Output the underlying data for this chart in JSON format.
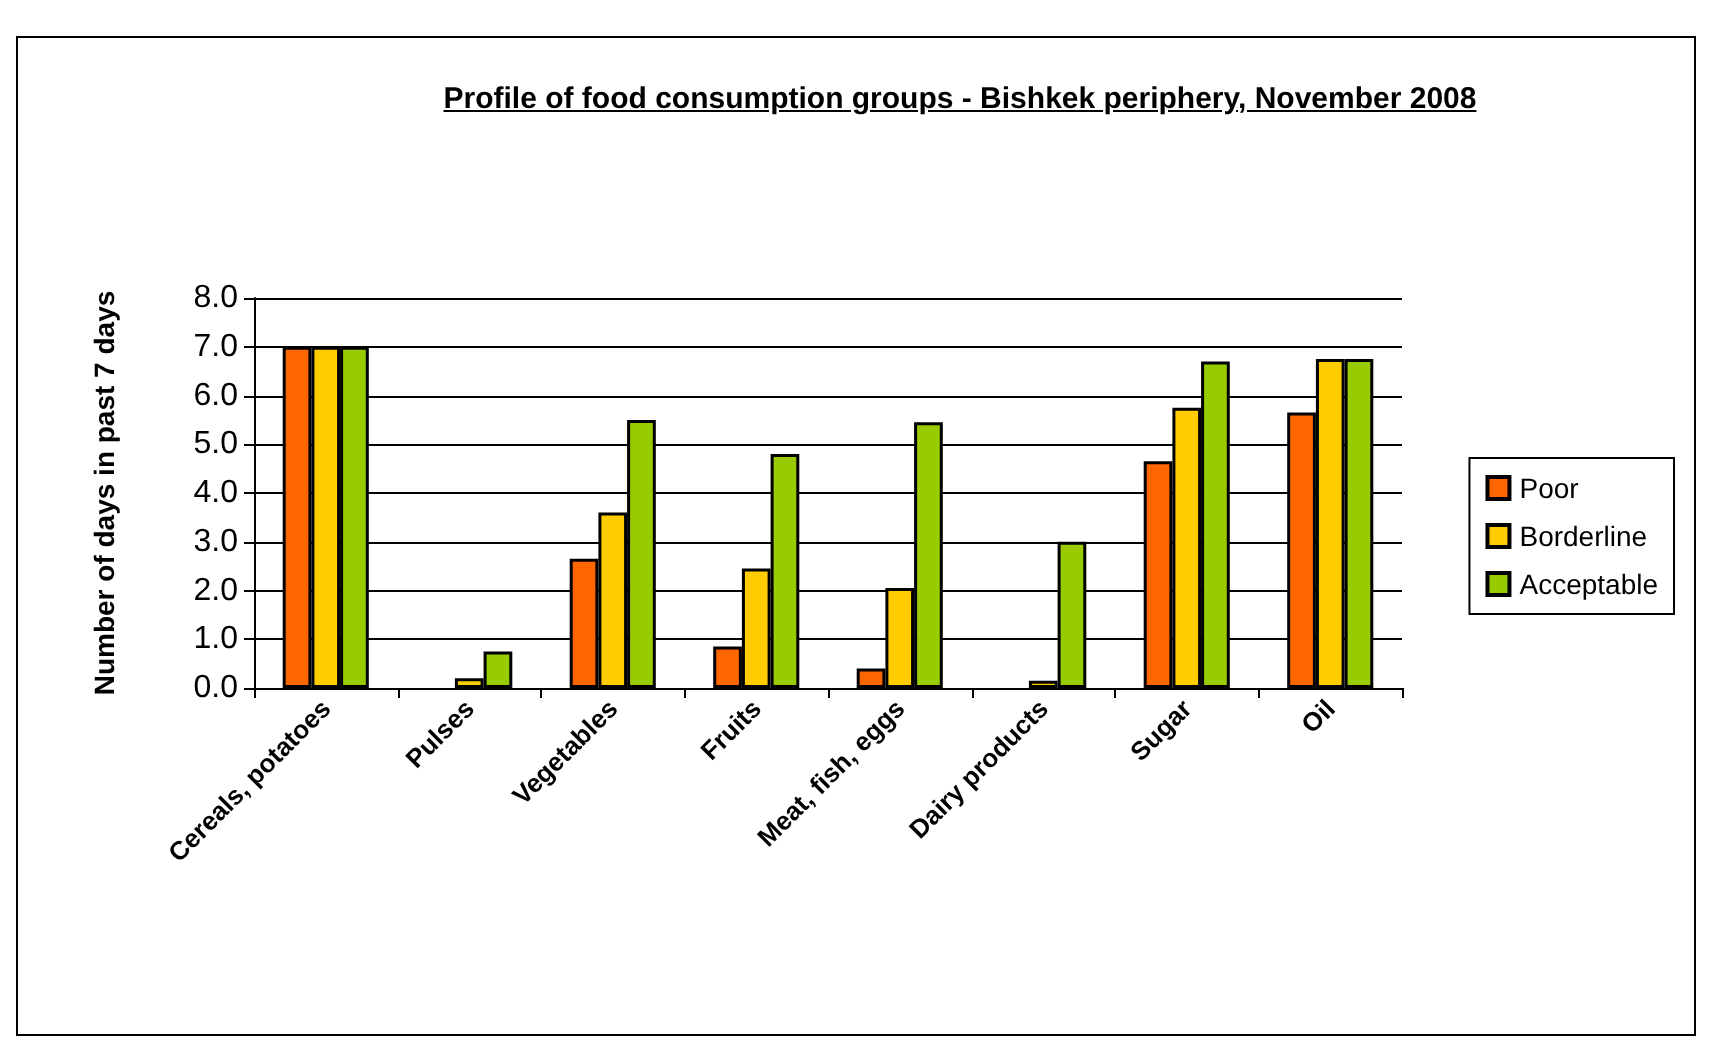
{
  "chart_data": {
    "type": "bar",
    "title": "Profile of food consumption groups - Bishkek periphery, November 2008",
    "ylabel": "Number of days in past 7 days",
    "categories": [
      "Cereals, potatoes",
      "Pulses",
      "Vegetables",
      "Fruits",
      "Meat, fish, eggs",
      "Dairy products",
      "Sugar",
      "Oil"
    ],
    "series": [
      {
        "name": "Poor",
        "color": "#ff6600",
        "values": [
          7.0,
          0,
          2.65,
          0.85,
          0.4,
          0,
          4.65,
          5.65
        ]
      },
      {
        "name": "Borderline",
        "color": "#ffcc00",
        "values": [
          7.0,
          0.2,
          3.6,
          2.45,
          2.05,
          0.15,
          5.75,
          6.75
        ]
      },
      {
        "name": "Acceptable",
        "color": "#99cc00",
        "values": [
          7.0,
          0.75,
          5.5,
          4.8,
          5.45,
          3.0,
          6.7,
          6.75
        ]
      }
    ],
    "ylim": [
      0,
      8
    ],
    "yticks": [
      {
        "value": 0,
        "label": "0.0"
      },
      {
        "value": 1,
        "label": "1.0"
      },
      {
        "value": 2,
        "label": "2.0"
      },
      {
        "value": 3,
        "label": "3.0"
      },
      {
        "value": 4,
        "label": "4.0"
      },
      {
        "value": 5,
        "label": "5.0"
      },
      {
        "value": 6,
        "label": "6.0"
      },
      {
        "value": 7,
        "label": "7.0"
      },
      {
        "value": 8,
        "label": "8.0"
      }
    ],
    "grid": "y",
    "legend": "right"
  }
}
